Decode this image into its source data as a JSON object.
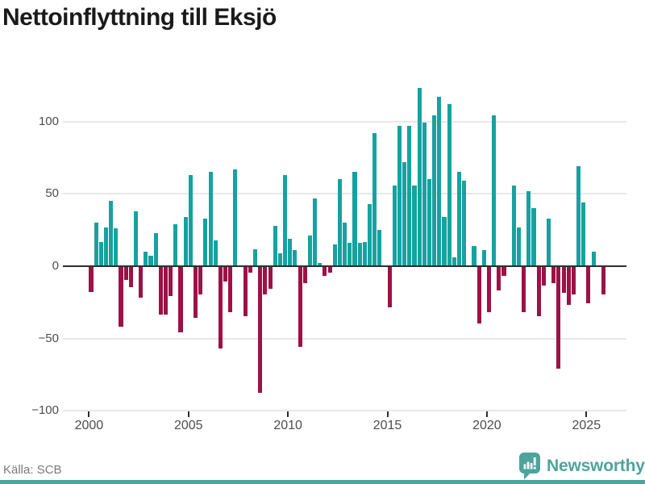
{
  "title": "Nettoinflyttning till Eksjö",
  "footer": {
    "source": "Källa: SCB",
    "brand": "Newsworthy"
  },
  "colors": {
    "positive": "#16a2a0",
    "negative": "#9d1246",
    "brand_teal": "#4ca49d",
    "axis_line": "#2e2e2e",
    "gridline": "#e7e7e7",
    "tick_label": "#4d4d4d",
    "title_text": "#1a1a1a",
    "source_text": "#7a7a7a"
  },
  "chart_data": {
    "type": "bar",
    "title": "Nettoinflyttning till Eksjö",
    "ylabel": "",
    "xlabel": "",
    "frequency": "quarterly",
    "start_period": "2000-Q1",
    "end_period": "2025-Q4",
    "grid": "horizontal",
    "legend": "none",
    "ylim": [
      -100,
      128
    ],
    "y_ticks": [
      100,
      50,
      0,
      -50,
      -100
    ],
    "y_tick_labels": [
      "100",
      "50",
      "0",
      "−50",
      "−100"
    ],
    "x_tick_labels": [
      "2000",
      "2005",
      "2010",
      "2015",
      "2020",
      "2025"
    ],
    "x_tick_start_year": 2000,
    "x_tick_step_years": 5,
    "values": [
      -17,
      30,
      17,
      27,
      45,
      26,
      -41,
      -9,
      -14,
      38,
      -21,
      10,
      7,
      23,
      -33,
      -33,
      -20,
      29,
      -45,
      34,
      63,
      -35,
      -19,
      33,
      65,
      18,
      -56,
      -10,
      -31,
      67,
      0,
      -34,
      -4,
      12,
      -87,
      -19,
      -15,
      28,
      9,
      63,
      19,
      11,
      -55,
      -11,
      21,
      47,
      2,
      -6,
      -4,
      15,
      60,
      30,
      16,
      65,
      16,
      17,
      43,
      92,
      25,
      0,
      -28,
      56,
      97,
      72,
      97,
      56,
      123,
      99,
      60,
      104,
      117,
      34,
      112,
      6,
      65,
      59,
      0,
      14,
      -39,
      11,
      -31,
      104,
      -16,
      -6,
      0,
      56,
      27,
      -31,
      52,
      40,
      -34,
      -13,
      33,
      -11,
      -70,
      -18,
      -26,
      -19,
      69,
      44,
      -25,
      10,
      0,
      -19
    ]
  }
}
